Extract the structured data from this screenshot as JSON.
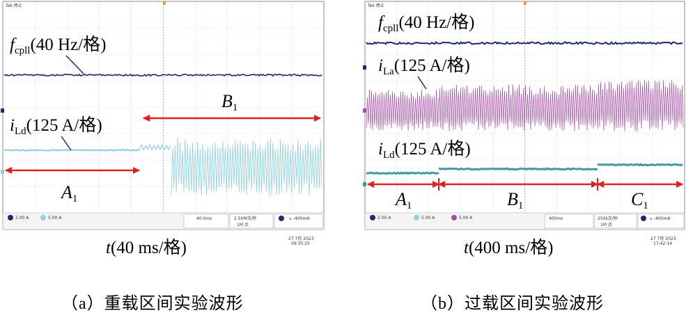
{
  "panels": [
    {
      "id": "a",
      "scope": {
        "brand": "Tek 停止"
      },
      "annotations": {
        "fcpll": {
          "sym": "f",
          "sub": "cpll",
          "scale": "(40 Hz/格)"
        },
        "iLd": {
          "sym": "i",
          "sub": "Ld",
          "scale": "(125 A/格)"
        },
        "A": {
          "sym": "A",
          "sub": "1"
        },
        "B": {
          "sym": "B",
          "sub": "1"
        }
      },
      "status": {
        "ch1": "2.00 A",
        "ch2": "5.00 A",
        "timebase": "40.0ms",
        "sample_rate": "2.50M次/秒",
        "points": "1M 点",
        "trigger": "↘ -400mA",
        "date": "27 7月 2023",
        "time": "09:35:25"
      },
      "time_label": {
        "sym": "t",
        "text": "(40 ms/格)"
      },
      "caption": "（a）重载区间实验波形"
    },
    {
      "id": "b",
      "scope": {
        "brand": "Tek 停止"
      },
      "annotations": {
        "fcpll": {
          "sym": "f",
          "sub": "cpll",
          "scale": "(40 Hz/格)"
        },
        "iLa": {
          "sym": "i",
          "sub": "La",
          "scale": "(125 A/格)"
        },
        "iLd": {
          "sym": "i",
          "sub": "Ld",
          "scale": "(125 A/格)"
        },
        "A": {
          "sym": "A",
          "sub": "1"
        },
        "B": {
          "sym": "B",
          "sub": "1"
        },
        "C": {
          "sym": "C",
          "sub": "1"
        }
      },
      "status": {
        "ch1": "2.00 A",
        "ch2": "5.00 A",
        "ch3": "5.00 A",
        "timebase": "400ms",
        "sample_rate": "250k次/秒",
        "points": "1M 点",
        "trigger": "↘ -400mA",
        "date": "27 7月 2023",
        "time": "17:42:14"
      },
      "time_label": {
        "sym": "t",
        "text": "(400 ms/格)"
      },
      "caption": "（b）过载区间实验波形"
    }
  ],
  "chart_data": [
    {
      "type": "line",
      "title": "",
      "xlabel": "t(40 ms/格)",
      "series": [
        {
          "name": "fcpll(40 Hz/格)",
          "color": "#1a2a6e",
          "segments": [
            {
              "x_div": [
                0,
                10
              ],
              "level": "constant"
            }
          ]
        },
        {
          "name": "iLd(125 A/格)",
          "color": "#8fd0dc",
          "segments": [
            {
              "x_div": [
                0,
                4.3
              ],
              "level": "low-constant"
            },
            {
              "x_div": [
                4.3,
                10
              ],
              "level": "oscillating"
            }
          ]
        }
      ],
      "intervals": [
        {
          "name": "A1",
          "x_div": [
            0,
            4.2
          ]
        },
        {
          "name": "B1",
          "x_div": [
            4.3,
            10
          ]
        }
      ],
      "grid": true
    },
    {
      "type": "line",
      "title": "",
      "xlabel": "t(400 ms/格)",
      "series": [
        {
          "name": "fcpll(40 Hz/格)",
          "color": "#1a2a6e",
          "segments": [
            {
              "x_div": [
                0,
                10
              ],
              "level": "constant"
            }
          ]
        },
        {
          "name": "iLa(125 A/格)",
          "color": "#a64da6",
          "segments": [
            {
              "x_div": [
                0,
                2.2
              ],
              "amplitude": "medium"
            },
            {
              "x_div": [
                2.2,
                7.3
              ],
              "amplitude": "medium-high"
            },
            {
              "x_div": [
                7.3,
                10
              ],
              "amplitude": "high"
            }
          ]
        },
        {
          "name": "iLd(125 A/格)",
          "color": "#3f9aa3",
          "segments": [
            {
              "x_div": [
                0,
                2.2
              ],
              "level": "step 1"
            },
            {
              "x_div": [
                2.2,
                7.3
              ],
              "level": "step 2"
            },
            {
              "x_div": [
                7.3,
                10
              ],
              "level": "step 3"
            }
          ]
        }
      ],
      "intervals": [
        {
          "name": "A1",
          "x_div": [
            0,
            2.2
          ]
        },
        {
          "name": "B1",
          "x_div": [
            2.2,
            7.3
          ]
        },
        {
          "name": "C1",
          "x_div": [
            7.3,
            10
          ]
        }
      ],
      "grid": true
    }
  ]
}
